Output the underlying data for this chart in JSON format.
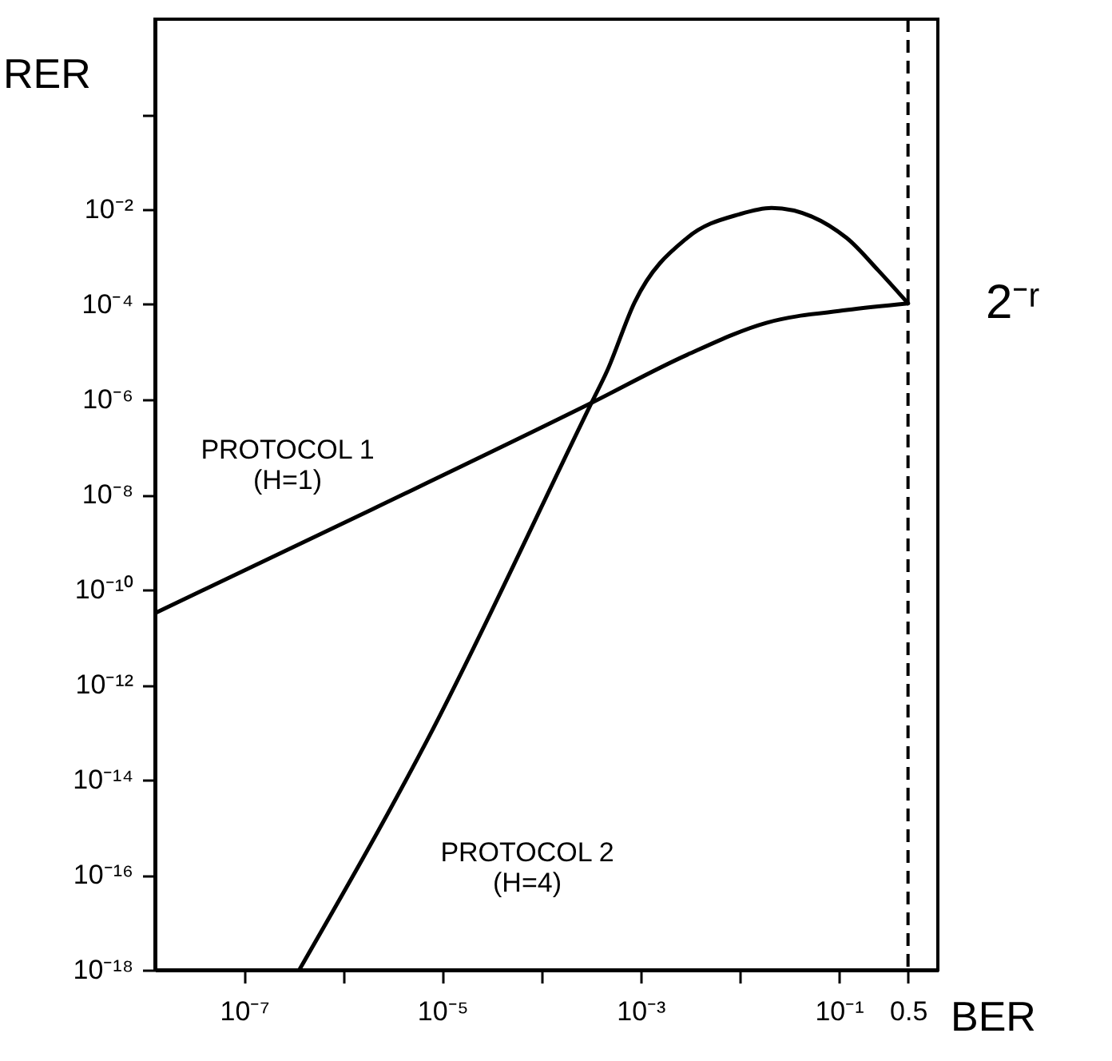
{
  "chart_data": {
    "type": "line",
    "xlabel": "BER",
    "ylabel": "RER",
    "log": "xy",
    "grid": false,
    "marker": "none",
    "line_style": "solid",
    "xlim": [
      1.26e-08,
      1.0
    ],
    "ylim": [
      1e-18,
      100
    ],
    "xticks": [
      {
        "value": 1e-07,
        "label": "10⁻⁷"
      },
      {
        "value": 1e-06,
        "label": null
      },
      {
        "value": 1e-05,
        "label": "10⁻⁵"
      },
      {
        "value": 0.0001,
        "label": null
      },
      {
        "value": 0.001,
        "label": "10⁻³"
      },
      {
        "value": 0.01,
        "label": null
      },
      {
        "value": 0.1,
        "label": "10⁻¹"
      },
      {
        "value": 0.5,
        "label": "0.5"
      }
    ],
    "yticks": [
      {
        "value": 1,
        "label": null
      },
      {
        "value": 0.01,
        "label": "10⁻²"
      },
      {
        "value": 0.0001,
        "label": "10⁻⁴"
      },
      {
        "value": 1e-06,
        "label": "10⁻⁶"
      },
      {
        "value": 1e-08,
        "label": "10⁻⁸"
      },
      {
        "value": 1e-10,
        "label": "10⁻¹⁰"
      },
      {
        "value": 1e-12,
        "label": "10⁻¹²"
      },
      {
        "value": 1e-14,
        "label": "10⁻¹⁴"
      },
      {
        "value": 1e-16,
        "label": "10⁻¹⁶"
      },
      {
        "value": 1e-18,
        "label": "10⁻¹⁸"
      }
    ],
    "series": [
      {
        "color": "#000000",
        "x": [
          1.26e-08,
          2e-06,
          0.00032,
          0.00295,
          0.0186,
          0.12,
          0.5
        ],
        "values": [
          3.2e-11,
          5e-09,
          8.5e-07,
          8.7e-06,
          4.1e-05,
          7.6e-05,
          0.000105
        ]
      },
      {
        "color": "#000000",
        "x": [
          3.6e-07,
          6.9e-06,
          0.00032,
          0.00046,
          0.00087,
          0.00295,
          0.01,
          0.021,
          0.12,
          0.25,
          0.5
        ],
        "values": [
          1e-18,
          6.3e-14,
          8.5e-07,
          4e-06,
          0.00011,
          0.0025,
          0.0079,
          0.0107,
          0.0025,
          0.00052,
          0.000105
        ]
      }
    ],
    "ref_lines": [
      {
        "axis": "x",
        "value": 0.5,
        "line_style": "dashed",
        "color": "#000000"
      }
    ],
    "annotations": [
      "PROTOCOL 1\n(H=1)",
      "PROTOCOL 2\n(H=4)",
      "2⁻ʳ"
    ]
  }
}
